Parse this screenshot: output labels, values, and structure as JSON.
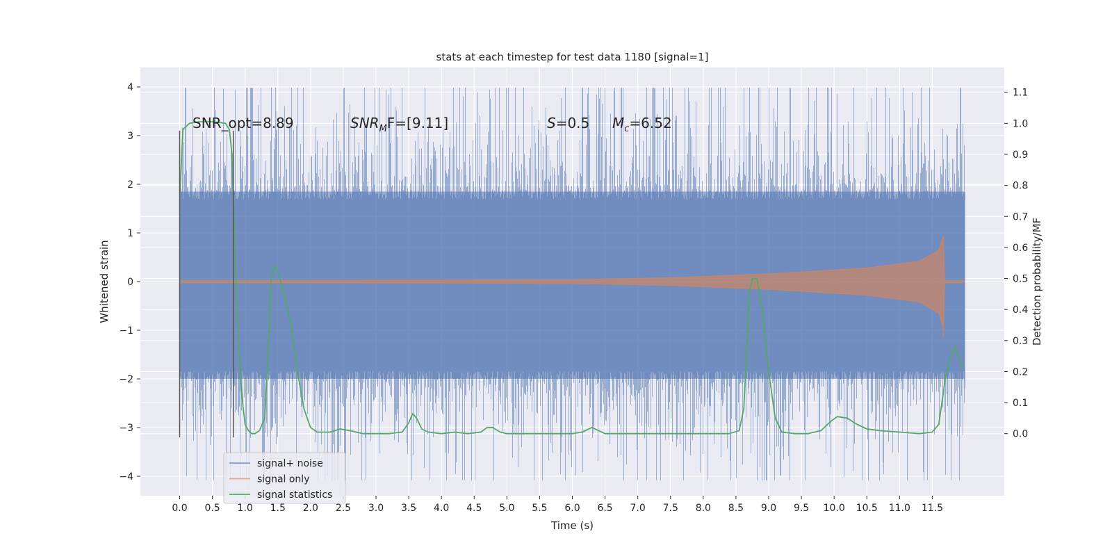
{
  "chart_data": {
    "type": "line",
    "title": "stats at each timestep for test data 1180 [signal=1]",
    "xlabel": "Time (s)",
    "ylabel": "Whitened strain",
    "ylabel_right": "Detection probability/MF",
    "xlim": [
      -0.6,
      12.6
    ],
    "ylim": [
      -4.4,
      4.4
    ],
    "ylim_right": [
      -0.2,
      1.18
    ],
    "x_ticks": [
      0.0,
      0.5,
      1.0,
      1.5,
      2.0,
      2.5,
      3.0,
      3.5,
      4.0,
      4.5,
      5.0,
      5.5,
      6.0,
      6.5,
      7.0,
      7.5,
      8.0,
      8.5,
      9.0,
      9.5,
      10.0,
      10.5,
      11.0,
      11.5
    ],
    "x_tick_labels": [
      "0.0",
      "0.5",
      "1.0",
      "1.5",
      "2.0",
      "2.5",
      "3.0",
      "3.5",
      "4.0",
      "4.5",
      "5.0",
      "5.5",
      "6.0",
      "6.5",
      "7.0",
      "7.5",
      "8.0",
      "8.5",
      "9.0",
      "9.5",
      "10.0",
      "10.5",
      "11.0",
      "11.5"
    ],
    "y_ticks": [
      4,
      3,
      2,
      1,
      0,
      -1,
      -2,
      -3,
      -4
    ],
    "y_tick_labels": [
      "4",
      "3",
      "2",
      "1",
      "0",
      "−1",
      "−2",
      "−3",
      "−4"
    ],
    "y_right_ticks": [
      1.1,
      1.0,
      0.9,
      0.8,
      0.7,
      0.6,
      0.5,
      0.4,
      0.3,
      0.2,
      0.1,
      0.0
    ],
    "y_right_tick_labels": [
      "1.1",
      "1.0",
      "0.9",
      "0.8",
      "0.7",
      "0.6",
      "0.5",
      "0.4",
      "0.3",
      "0.2",
      "0.1",
      "0.0"
    ],
    "grid": true,
    "legend_position": "lower-left",
    "annotations": {
      "snr_opt": "SNR_opt=8.89",
      "snr_mf_symbol": "SNR",
      "snr_mf_sub": "M",
      "snr_mf_rest": "F=[9.11]",
      "s_symbol": "S",
      "s_value": "=0.5",
      "mc_symbol": "M",
      "mc_sub": "c",
      "mc_value": "=6.52"
    },
    "vertical_markers": [
      {
        "x": 0.0,
        "y_range": [
          -3.2,
          3.1
        ]
      },
      {
        "x": 0.82,
        "y_range": [
          -3.2,
          3.1
        ]
      }
    ],
    "series": [
      {
        "name": "signal+ noise",
        "color": "#4c72b0",
        "kind": "noise-band",
        "x_range": [
          0.0,
          11.99
        ],
        "envelope_low": -2.0,
        "envelope_high": 1.85,
        "peak_max": 3.98,
        "peak_min": -4.08
      },
      {
        "name": "signal only",
        "color": "#dd8452",
        "kind": "chirp",
        "x_range": [
          0.0,
          11.99
        ],
        "merger_time": 11.67,
        "amplitude_envelope": [
          [
            0.0,
            0.02
          ],
          [
            6.0,
            0.04
          ],
          [
            7.5,
            0.08
          ],
          [
            9.0,
            0.16
          ],
          [
            10.5,
            0.28
          ],
          [
            11.3,
            0.42
          ],
          [
            11.6,
            0.65
          ],
          [
            11.67,
            0.95
          ]
        ],
        "post_merger_amplitude": 0.02
      },
      {
        "name": "signal statistics",
        "color": "#55a868",
        "kind": "line",
        "axis": "right",
        "points": [
          [
            0.0,
            0.75
          ],
          [
            0.05,
            0.98
          ],
          [
            0.15,
            1.0
          ],
          [
            0.3,
            1.005
          ],
          [
            0.5,
            1.005
          ],
          [
            0.7,
            1.0
          ],
          [
            0.76,
            0.98
          ],
          [
            0.8,
            0.9
          ],
          [
            0.82,
            0.75
          ],
          [
            0.86,
            0.5
          ],
          [
            0.9,
            0.3
          ],
          [
            0.95,
            0.12
          ],
          [
            1.0,
            0.03
          ],
          [
            1.05,
            0.01
          ],
          [
            1.1,
            0.0
          ],
          [
            1.15,
            0.0
          ],
          [
            1.22,
            0.01
          ],
          [
            1.3,
            0.05
          ],
          [
            1.35,
            0.25
          ],
          [
            1.4,
            0.5
          ],
          [
            1.45,
            0.54
          ],
          [
            1.5,
            0.52
          ],
          [
            1.6,
            0.45
          ],
          [
            1.7,
            0.35
          ],
          [
            1.8,
            0.2
          ],
          [
            1.9,
            0.08
          ],
          [
            2.0,
            0.02
          ],
          [
            2.1,
            0.005
          ],
          [
            2.3,
            0.005
          ],
          [
            2.45,
            0.015
          ],
          [
            2.6,
            0.01
          ],
          [
            2.8,
            0.0
          ],
          [
            3.0,
            0.0
          ],
          [
            3.2,
            0.0
          ],
          [
            3.4,
            0.005
          ],
          [
            3.5,
            0.035
          ],
          [
            3.56,
            0.065
          ],
          [
            3.62,
            0.05
          ],
          [
            3.7,
            0.015
          ],
          [
            3.8,
            0.005
          ],
          [
            4.0,
            0.0
          ],
          [
            4.2,
            0.005
          ],
          [
            4.4,
            0.0
          ],
          [
            4.6,
            0.005
          ],
          [
            4.7,
            0.02
          ],
          [
            4.78,
            0.02
          ],
          [
            4.9,
            0.005
          ],
          [
            5.0,
            0.0
          ],
          [
            5.5,
            0.0
          ],
          [
            6.0,
            0.0
          ],
          [
            6.15,
            0.005
          ],
          [
            6.3,
            0.02
          ],
          [
            6.4,
            0.01
          ],
          [
            6.5,
            0.0
          ],
          [
            7.0,
            0.0
          ],
          [
            7.5,
            0.0
          ],
          [
            8.0,
            0.0
          ],
          [
            8.4,
            0.0
          ],
          [
            8.55,
            0.01
          ],
          [
            8.62,
            0.08
          ],
          [
            8.66,
            0.25
          ],
          [
            8.7,
            0.45
          ],
          [
            8.75,
            0.5
          ],
          [
            8.82,
            0.5
          ],
          [
            8.9,
            0.4
          ],
          [
            9.0,
            0.2
          ],
          [
            9.1,
            0.05
          ],
          [
            9.2,
            0.005
          ],
          [
            9.4,
            0.0
          ],
          [
            9.6,
            0.0
          ],
          [
            9.8,
            0.01
          ],
          [
            9.95,
            0.04
          ],
          [
            10.05,
            0.055
          ],
          [
            10.2,
            0.05
          ],
          [
            10.35,
            0.03
          ],
          [
            10.5,
            0.015
          ],
          [
            10.7,
            0.01
          ],
          [
            11.0,
            0.005
          ],
          [
            11.3,
            0.0
          ],
          [
            11.5,
            0.005
          ],
          [
            11.6,
            0.03
          ],
          [
            11.7,
            0.18
          ],
          [
            11.78,
            0.25
          ],
          [
            11.85,
            0.28
          ],
          [
            11.92,
            0.24
          ],
          [
            11.97,
            0.21
          ]
        ]
      }
    ]
  }
}
